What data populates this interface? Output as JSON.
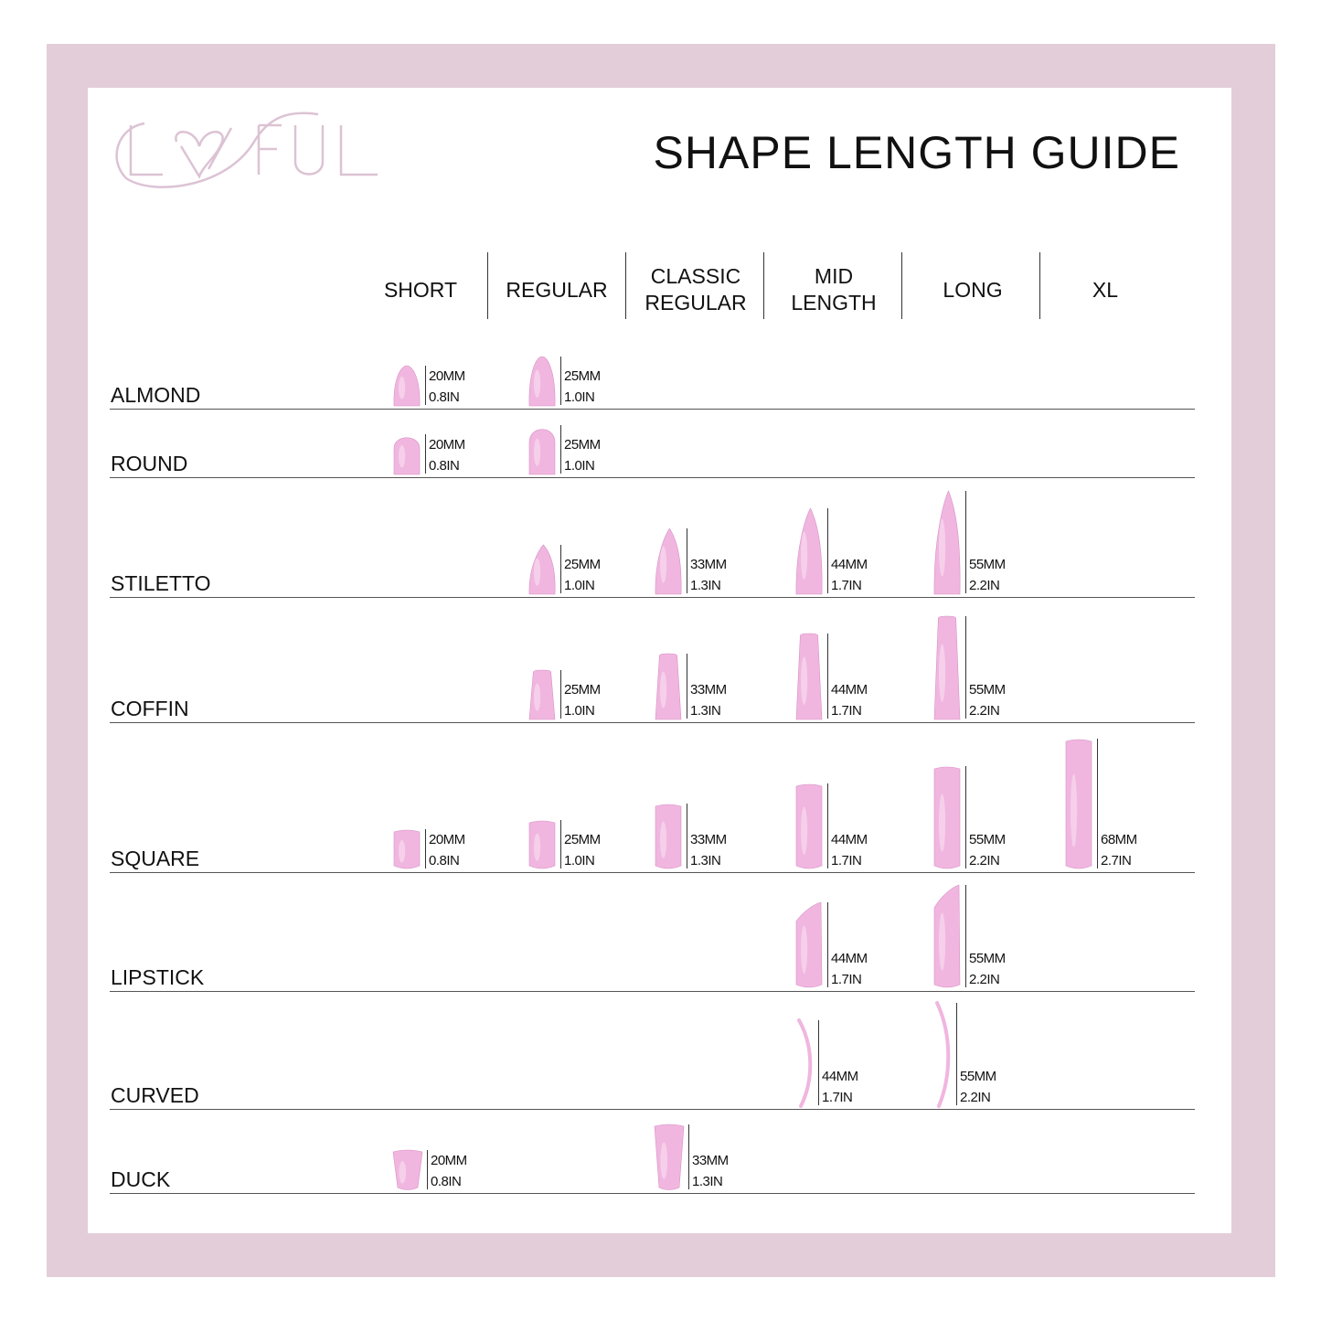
{
  "brand": {
    "logo_text": "LOVFUL",
    "color": "#dcc3d4"
  },
  "title": "SHAPE LENGTH GUIDE",
  "colors": {
    "frame": "#e2cdd9",
    "nail": "#f0b6df",
    "nail_highlight": "#fbe3f3",
    "nail_shadow": "#d892c6"
  },
  "columns": [
    {
      "id": "short",
      "label": "SHORT"
    },
    {
      "id": "regular",
      "label": "REGULAR"
    },
    {
      "id": "classic",
      "label": "CLASSIC REGULAR"
    },
    {
      "id": "mid",
      "label": "MID LENGTH"
    },
    {
      "id": "long",
      "label": "LONG"
    },
    {
      "id": "xl",
      "label": "XL"
    }
  ],
  "rows": [
    {
      "shape": "ALMOND",
      "entries": [
        {
          "col": "short",
          "mm": "20MM",
          "in": "0.8IN"
        },
        {
          "col": "regular",
          "mm": "25MM",
          "in": "1.0IN"
        }
      ]
    },
    {
      "shape": "ROUND",
      "entries": [
        {
          "col": "short",
          "mm": "20MM",
          "in": "0.8IN"
        },
        {
          "col": "regular",
          "mm": "25MM",
          "in": "1.0IN"
        }
      ]
    },
    {
      "shape": "STILETTO",
      "entries": [
        {
          "col": "regular",
          "mm": "25MM",
          "in": "1.0IN"
        },
        {
          "col": "classic",
          "mm": "33MM",
          "in": "1.3IN"
        },
        {
          "col": "mid",
          "mm": "44MM",
          "in": "1.7IN"
        },
        {
          "col": "long",
          "mm": "55MM",
          "in": "2.2IN"
        }
      ]
    },
    {
      "shape": "COFFIN",
      "entries": [
        {
          "col": "regular",
          "mm": "25MM",
          "in": "1.0IN"
        },
        {
          "col": "classic",
          "mm": "33MM",
          "in": "1.3IN"
        },
        {
          "col": "mid",
          "mm": "44MM",
          "in": "1.7IN"
        },
        {
          "col": "long",
          "mm": "55MM",
          "in": "2.2IN"
        }
      ]
    },
    {
      "shape": "SQUARE",
      "entries": [
        {
          "col": "short",
          "mm": "20MM",
          "in": "0.8IN"
        },
        {
          "col": "regular",
          "mm": "25MM",
          "in": "1.0IN"
        },
        {
          "col": "classic",
          "mm": "33MM",
          "in": "1.3IN"
        },
        {
          "col": "mid",
          "mm": "44MM",
          "in": "1.7IN"
        },
        {
          "col": "long",
          "mm": "55MM",
          "in": "2.2IN"
        },
        {
          "col": "xl",
          "mm": "68MM",
          "in": "2.7IN"
        }
      ]
    },
    {
      "shape": "LIPSTICK",
      "entries": [
        {
          "col": "mid",
          "mm": "44MM",
          "in": "1.7IN"
        },
        {
          "col": "long",
          "mm": "55MM",
          "in": "2.2IN"
        }
      ]
    },
    {
      "shape": "CURVED",
      "entries": [
        {
          "col": "mid",
          "mm": "44MM",
          "in": "1.7IN"
        },
        {
          "col": "long",
          "mm": "55MM",
          "in": "2.2IN"
        }
      ]
    },
    {
      "shape": "DUCK",
      "entries": [
        {
          "col": "short",
          "mm": "20MM",
          "in": "0.8IN"
        },
        {
          "col": "classic",
          "mm": "33MM",
          "in": "1.3IN"
        }
      ]
    }
  ]
}
